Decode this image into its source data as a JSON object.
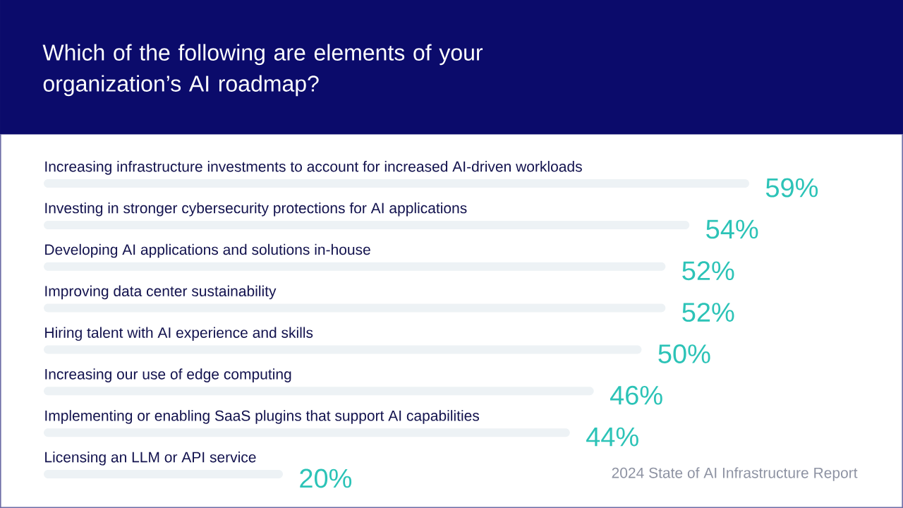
{
  "chart_data": {
    "type": "bar",
    "orientation": "horizontal",
    "title": "Which of the following are elements of your organization’s AI roadmap?",
    "categories": [
      "Increasing infrastructure investments to account for increased AI-driven workloads",
      "Investing in stronger cybersecurity protections for AI applications",
      "Developing AI applications and solutions in-house",
      "Improving data center sustainability",
      "Hiring talent with AI experience and skills",
      "Increasing our use of edge computing",
      "Implementing or enabling SaaS plugins that support AI capabilities",
      "Licensing an LLM or API service"
    ],
    "values": [
      59,
      54,
      52,
      52,
      50,
      46,
      44,
      20
    ],
    "value_labels": [
      "59%",
      "54%",
      "52%",
      "52%",
      "50%",
      "46%",
      "44%",
      "20%"
    ],
    "color": "#edf2f5",
    "annotations": [
      "2024 State of AI Infrastructure Report"
    ]
  }
}
